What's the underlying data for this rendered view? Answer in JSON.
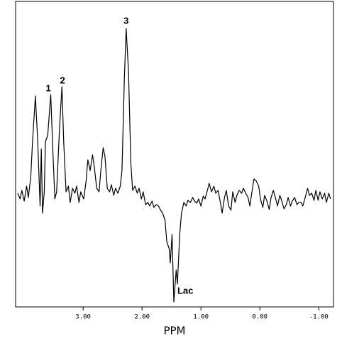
{
  "chart_data": {
    "type": "line",
    "x_label": "PPM",
    "color": "#000000",
    "x": [
      4.11,
      4.07,
      4.04,
      4.0,
      3.96,
      3.93,
      3.89,
      3.86,
      3.81,
      3.77,
      3.73,
      3.71,
      3.69,
      3.66,
      3.64,
      3.6,
      3.55,
      3.52,
      3.48,
      3.45,
      3.4,
      3.36,
      3.33,
      3.29,
      3.25,
      3.22,
      3.18,
      3.14,
      3.11,
      3.07,
      3.04,
      2.99,
      2.95,
      2.92,
      2.88,
      2.84,
      2.81,
      2.77,
      2.73,
      2.7,
      2.66,
      2.63,
      2.59,
      2.55,
      2.52,
      2.48,
      2.45,
      2.41,
      2.37,
      2.34,
      2.3,
      2.27,
      2.23,
      2.19,
      2.16,
      2.12,
      2.08,
      2.05,
      2.01,
      1.98,
      1.94,
      1.9,
      1.87,
      1.83,
      1.8,
      1.76,
      1.72,
      1.69,
      1.65,
      1.61,
      1.58,
      1.54,
      1.52,
      1.49,
      1.46,
      1.42,
      1.4,
      1.36,
      1.33,
      1.29,
      1.25,
      1.22,
      1.18,
      1.14,
      1.11,
      1.07,
      1.04,
      1.0,
      0.96,
      0.93,
      0.89,
      0.86,
      0.82,
      0.78,
      0.75,
      0.71,
      0.67,
      0.64,
      0.6,
      0.57,
      0.53,
      0.49,
      0.46,
      0.42,
      0.39,
      0.35,
      0.31,
      0.28,
      0.24,
      0.2,
      0.17,
      0.13,
      0.1,
      0.06,
      0.02,
      -0.01,
      -0.05,
      -0.08,
      -0.12,
      -0.16,
      -0.19,
      -0.23,
      -0.27,
      -0.3,
      -0.34,
      -0.37,
      -0.41,
      -0.45,
      -0.48,
      -0.52,
      -0.55,
      -0.59,
      -0.63,
      -0.66,
      -0.7,
      -0.73,
      -0.77,
      -0.81,
      -0.84,
      -0.88,
      -0.92,
      -0.95,
      -0.99,
      -1.02,
      -1.06,
      -1.1,
      -1.13,
      -1.17,
      -1.2
    ],
    "values": [
      0.6,
      -0.2,
      1.0,
      -0.5,
      1.6,
      0,
      2.8,
      7.8,
      14.3,
      7.8,
      -1.2,
      6.8,
      -2.2,
      0.8,
      7.8,
      8.8,
      14.5,
      7.8,
      -0.2,
      0.8,
      9.8,
      15.6,
      7.8,
      0.8,
      1.6,
      -0.7,
      1.3,
      0.6,
      1.6,
      -0.7,
      0.8,
      -0.2,
      2.3,
      5.3,
      3.8,
      6.0,
      4.3,
      1.3,
      0.8,
      3.8,
      7.0,
      5.8,
      1.3,
      0.8,
      1.8,
      0.3,
      1.3,
      0.6,
      1.6,
      3.8,
      16.8,
      23.8,
      17.8,
      4.8,
      1.0,
      1.6,
      0.6,
      1.3,
      -0.2,
      0.8,
      -1.0,
      -0.7,
      -1.2,
      -0.5,
      -1.4,
      -1.0,
      -1.2,
      -1.7,
      -2.2,
      -3.2,
      -6.2,
      -7.2,
      -9.2,
      -5.2,
      -14.7,
      -10.2,
      -12.2,
      -5.2,
      -2.2,
      -0.7,
      -1.2,
      -0.4,
      -0.7,
      0,
      -0.5,
      -0.8,
      -0.2,
      -1.2,
      0.2,
      -0.2,
      1.0,
      2.0,
      0.8,
      1.6,
      0.6,
      1.0,
      -0.7,
      -2.2,
      0,
      1.0,
      -1.2,
      -1.8,
      0.8,
      -0.7,
      0.3,
      1.0,
      0.6,
      1.3,
      0.6,
      0,
      -1.2,
      1.0,
      2.6,
      2.3,
      1.6,
      -0.2,
      -1.4,
      0.3,
      -0.5,
      -1.7,
      0,
      1.0,
      -0.2,
      -1.2,
      0.3,
      -0.4,
      -1.6,
      -1.0,
      0,
      -1.2,
      -0.5,
      0,
      -1.0,
      -0.7,
      -0.7,
      -1.2,
      0,
      1.3,
      0.3,
      0.6,
      -0.4,
      1.0,
      -0.4,
      0.8,
      -0.2,
      0.6,
      -0.7,
      0.6,
      -0.2
    ],
    "xlim": [
      4.11,
      -1.25
    ],
    "ylim": [
      -15.4,
      26.8
    ],
    "xticks": [
      {
        "value": 3,
        "label": "3.00"
      },
      {
        "value": 2,
        "label": "2.00"
      },
      {
        "value": 1,
        "label": "1.00"
      },
      {
        "value": 0,
        "label": "0.00"
      },
      {
        "value": -1,
        "label": "-1.00"
      }
    ],
    "annotations": [
      {
        "text": "1",
        "x": 3.59,
        "y": 15.3
      },
      {
        "text": "2",
        "x": 3.35,
        "y": 16.4
      },
      {
        "text": "3",
        "x": 2.27,
        "y": 24.8
      },
      {
        "text": "Lac",
        "x": 1.4,
        "y": -13.2
      }
    ]
  }
}
